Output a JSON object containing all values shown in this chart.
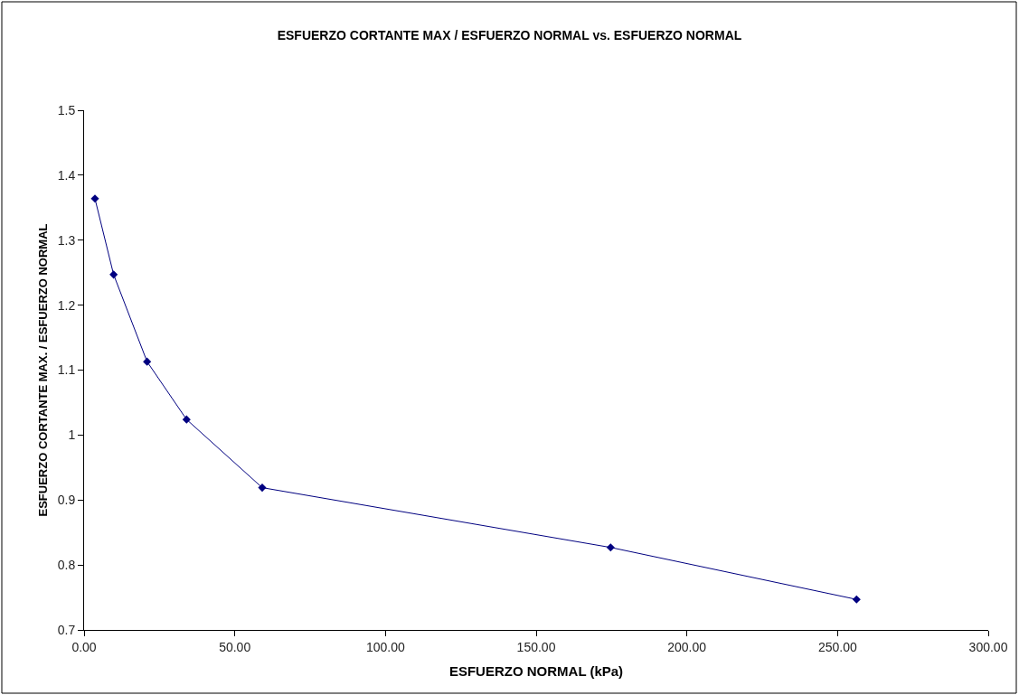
{
  "chart_data": {
    "type": "line",
    "title": "ESFUERZO CORTANTE MAX / ESFUERZO NORMAL vs. ESFUERZO NORMAL",
    "xlabel": "ESFUERZO NORMAL (kPa)",
    "ylabel": "ESFUERZO CORTANTE MAX. / ESFUERZO NORMAL",
    "x": [
      3.6,
      9.8,
      20.9,
      34.0,
      59.1,
      174.7,
      256.3
    ],
    "series": [
      {
        "color": "#000080",
        "values": [
          1.364,
          1.247,
          1.113,
          1.024,
          0.919,
          0.827,
          0.747
        ]
      }
    ],
    "xlim": [
      0,
      300
    ],
    "xticks": [
      {
        "value": 0,
        "label": "0.00"
      },
      {
        "value": 50,
        "label": "50.00"
      },
      {
        "value": 100,
        "label": "100.00"
      },
      {
        "value": 150,
        "label": "150.00"
      },
      {
        "value": 200,
        "label": "200.00"
      },
      {
        "value": 250,
        "label": "250.00"
      },
      {
        "value": 300,
        "label": "300.00"
      }
    ],
    "ylim": [
      0.7,
      1.5
    ],
    "yticks": [
      0.7,
      0.8,
      0.9,
      1,
      1.1,
      1.2,
      1.3,
      1.4,
      1.5
    ],
    "marker": "diamond",
    "line_style": "solid"
  }
}
